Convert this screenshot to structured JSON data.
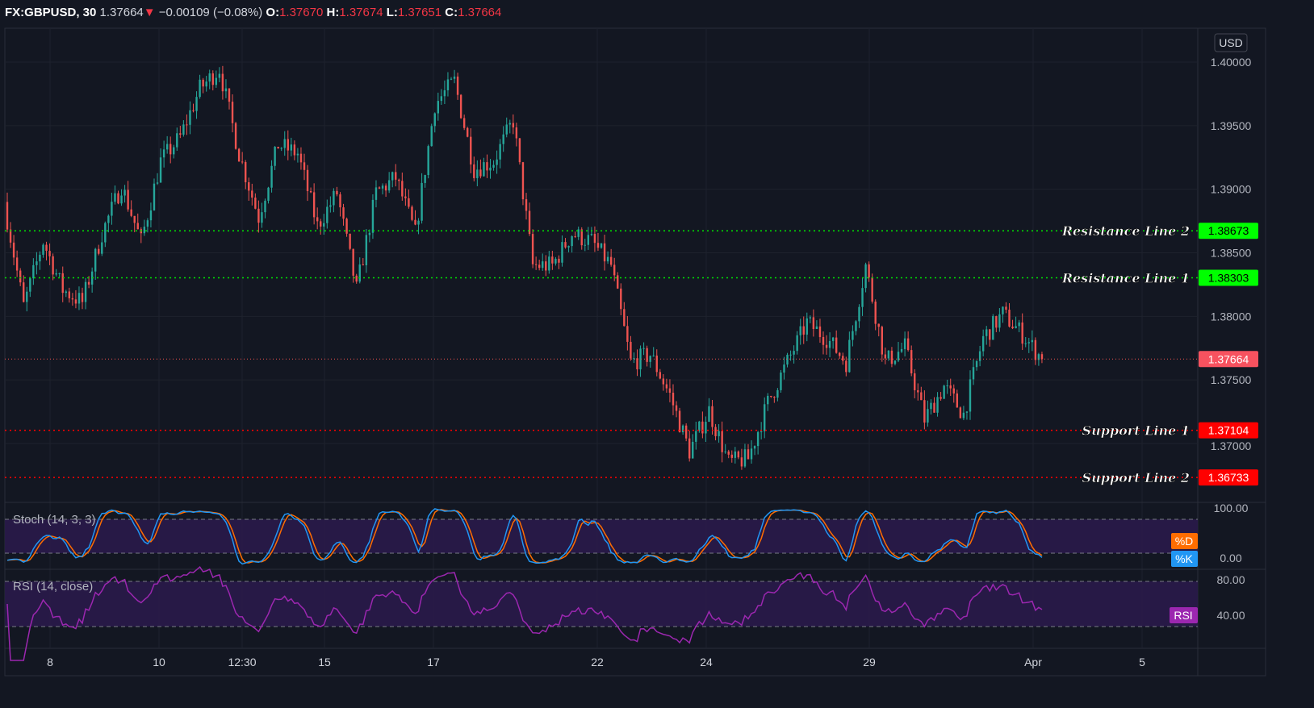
{
  "header": {
    "symbol": "FX:GBPUSD, 30",
    "last": "1.37664",
    "change": "−0.00109 (−0.08%)",
    "o_label": "O:",
    "o": "1.37670",
    "h_label": "H:",
    "h": "1.37674",
    "l_label": "L:",
    "l": "1.37651",
    "c_label": "C:",
    "c": "1.37664",
    "direction_icon": "triangle-down"
  },
  "currency": "USD",
  "colors": {
    "up": "#26a69a",
    "down": "#ef5350",
    "resistance": "#00e600",
    "support": "#ff0000",
    "stoch_k": "#2196f3",
    "stoch_d": "#ff6d00",
    "rsi": "#9c27b0",
    "band": "#2a1a4a"
  },
  "chart_data": {
    "type": "candlestick",
    "ylim": [
      1.365,
      1.4035
    ],
    "y_ticks": [
      "1.40000",
      "1.39500",
      "1.39000",
      "1.38500",
      "1.38000",
      "1.37500",
      "1.37000"
    ],
    "x_ticks": [
      "8",
      "10",
      "12:30",
      "15",
      "17",
      "22",
      "24",
      "29",
      "Apr",
      "5"
    ],
    "closes": [
      1.389,
      1.3808,
      1.3859,
      1.3821,
      1.3811,
      1.3865,
      1.3903,
      1.3859,
      1.3922,
      1.3941,
      1.3979,
      1.3995,
      1.3928,
      1.3878,
      1.3935,
      1.3928,
      1.3871,
      1.3897,
      1.3821,
      1.3897,
      1.3909,
      1.3865,
      1.3967,
      1.3985,
      1.3916,
      1.3922,
      1.3954,
      1.384,
      1.384,
      1.3865,
      1.3859,
      1.384,
      1.3764,
      1.377,
      1.3738,
      1.3694,
      1.3726,
      1.3685,
      1.3688,
      1.3732,
      1.3764,
      1.3795,
      1.3783,
      1.3764,
      1.384,
      1.3764,
      1.3776,
      1.3719,
      1.3745,
      1.3723,
      1.3783,
      1.3802,
      1.3786,
      1.37664
    ],
    "levels": [
      {
        "label": "Resistance Line 2",
        "value": 1.38673,
        "text": "1.38673",
        "kind": "resistance"
      },
      {
        "label": "Resistance Line 1",
        "value": 1.38303,
        "text": "1.38303",
        "kind": "resistance"
      },
      {
        "label": "Support Line 1",
        "value": 1.37104,
        "text": "1.37104",
        "kind": "support"
      },
      {
        "label": "Support Line 2",
        "value": 1.36733,
        "text": "1.36733",
        "kind": "support"
      }
    ],
    "last_price": {
      "value": 1.37664,
      "text": "1.37664"
    },
    "stoch": {
      "title": "Stoch (14, 3, 3)",
      "ylim": [
        0,
        100
      ],
      "bands": [
        80,
        20
      ],
      "ticks": [
        "100.00",
        "0.00"
      ],
      "labels": [
        "%D",
        "%K"
      ]
    },
    "rsi": {
      "title": "RSI (14, close)",
      "bands": [
        70,
        30
      ],
      "ticks": [
        "80.00",
        "40.00"
      ],
      "label": "RSI"
    }
  }
}
